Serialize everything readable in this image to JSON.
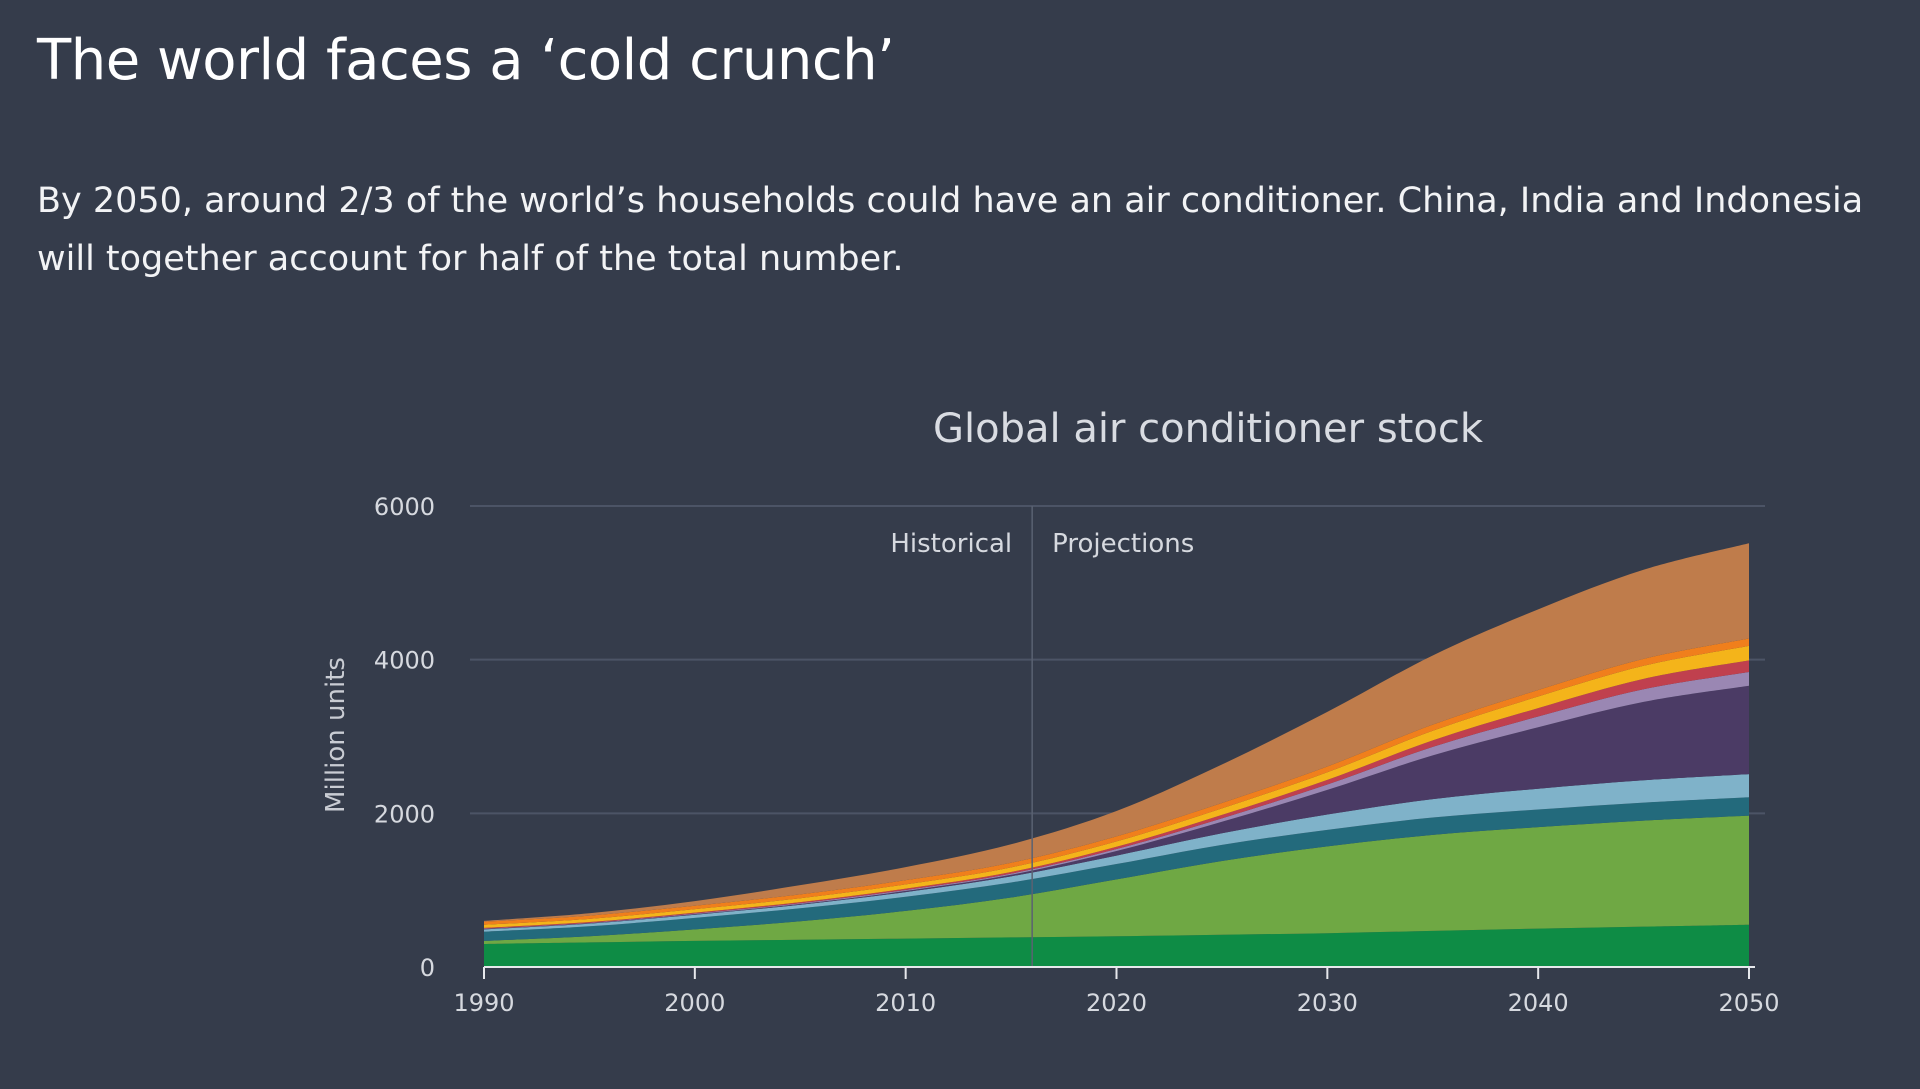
{
  "page": {
    "headline": "The world faces a ‘cold crunch’",
    "subtitle": "By 2050, around 2/3 of the world’s households could have an air conditioner. China, India and Indonesia will together account for half of the total number.",
    "background_color": "#353c4b"
  },
  "chart_data": {
    "type": "area",
    "stacked": true,
    "title": "Global air conditioner stock",
    "xlabel": "",
    "ylabel": "Million units",
    "x": [
      1990,
      1995,
      2000,
      2005,
      2010,
      2015,
      2020,
      2025,
      2030,
      2035,
      2040,
      2045,
      2050
    ],
    "xticks": [
      "1990",
      "2000",
      "2010",
      "2020",
      "2030",
      "2040",
      "2050"
    ],
    "yticks": [
      "0",
      "2000",
      "4000",
      "6000"
    ],
    "xlim": [
      1990,
      2050
    ],
    "ylim": [
      0,
      6000
    ],
    "grid": true,
    "legend": "none",
    "annotations": {
      "split_year": 2016,
      "left_label": "Historical",
      "right_label": "Projections"
    },
    "series": [
      {
        "color": "#0e8c45",
        "values": [
          300,
          320,
          340,
          355,
          370,
          385,
          400,
          420,
          440,
          470,
          500,
          525,
          550
        ]
      },
      {
        "color": "#6fa844",
        "values": [
          40,
          80,
          150,
          240,
          360,
          520,
          740,
          960,
          1130,
          1250,
          1320,
          1380,
          1420
        ]
      },
      {
        "color": "#236a7c",
        "values": [
          120,
          130,
          150,
          170,
          185,
          195,
          200,
          210,
          215,
          225,
          230,
          235,
          240
        ]
      },
      {
        "color": "#7fb2c9",
        "values": [
          30,
          35,
          40,
          45,
          60,
          80,
          110,
          150,
          200,
          240,
          270,
          290,
          300
        ]
      },
      {
        "color": "#4b3b65",
        "values": [
          5,
          5,
          8,
          10,
          15,
          20,
          60,
          150,
          320,
          570,
          800,
          1020,
          1150
        ]
      },
      {
        "color": "#9a87b3",
        "values": [
          5,
          5,
          8,
          10,
          12,
          15,
          25,
          45,
          70,
          110,
          140,
          165,
          180
        ]
      },
      {
        "color": "#c0404e",
        "values": [
          10,
          10,
          12,
          15,
          18,
          22,
          30,
          45,
          60,
          85,
          110,
          135,
          150
        ]
      },
      {
        "color": "#f4b41a",
        "values": [
          40,
          42,
          45,
          50,
          55,
          60,
          70,
          85,
          100,
          125,
          150,
          170,
          190
        ]
      },
      {
        "color": "#f07f1c",
        "values": [
          40,
          42,
          45,
          50,
          55,
          60,
          65,
          70,
          75,
          80,
          85,
          90,
          95
        ]
      },
      {
        "color": "#bf7c4b",
        "values": [
          10,
          30,
          60,
          120,
          170,
          240,
          330,
          500,
          710,
          900,
          1050,
          1160,
          1240
        ]
      }
    ]
  }
}
